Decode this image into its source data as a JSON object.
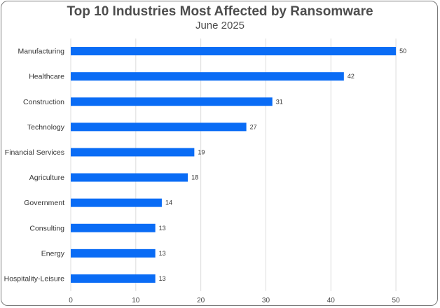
{
  "chart_data": {
    "type": "bar",
    "orientation": "horizontal",
    "title": "Top 10 Industries Most Affected by Ransomware",
    "subtitle": "June 2025",
    "categories": [
      "Manufacturing",
      "Healthcare",
      "Construction",
      "Technology",
      "Financial Services",
      "Agriculture",
      "Government",
      "Consulting",
      "Energy",
      "Hospitality-Leisure"
    ],
    "values": [
      50,
      42,
      31,
      27,
      19,
      18,
      14,
      13,
      13,
      13
    ],
    "xlim": [
      0,
      55
    ],
    "xticks": [
      0,
      10,
      20,
      30,
      40,
      50
    ],
    "grid": true,
    "bar_color": "#0a6cf5"
  }
}
